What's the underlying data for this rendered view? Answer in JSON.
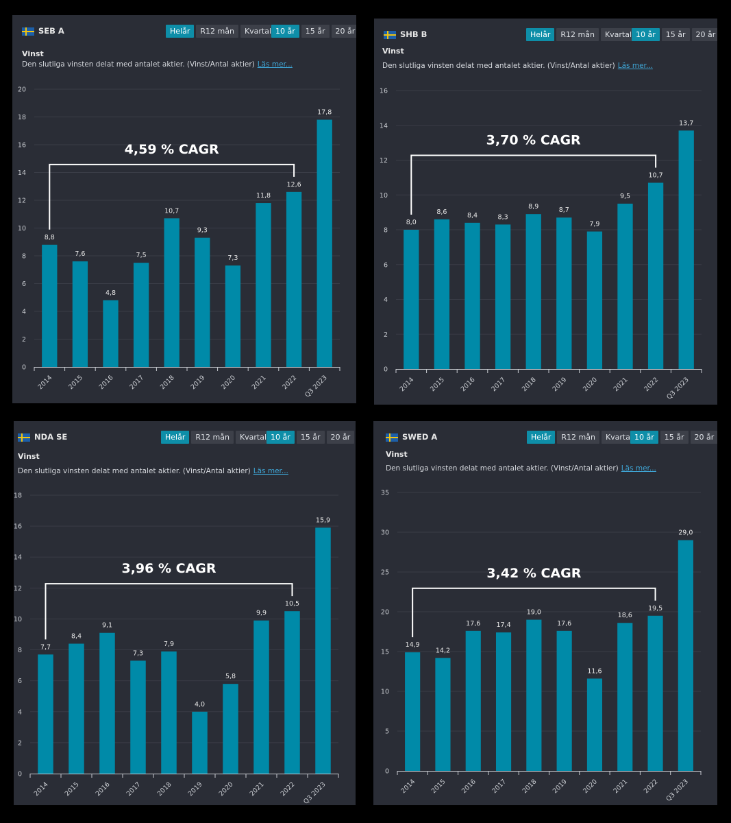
{
  "common": {
    "metric_title": "Vinst",
    "description": "Den slutliga vinsten delat med antalet aktier. (Vinst/Antal aktier)",
    "read_more": "Läs mer...",
    "period_buttons": [
      "Helår",
      "R12 mån",
      "Kvartal"
    ],
    "range_buttons": [
      "10 år",
      "15 år",
      "20 år"
    ],
    "active_period": "Helår",
    "active_range": "10 år"
  },
  "colors": {
    "bar": "#008aa8",
    "panel_bg": "#2a2d36",
    "accent": "#0e8ea8",
    "grid": "#3a3d47",
    "page_bg": "#000000"
  },
  "chart_data": [
    {
      "type": "bar",
      "ticker": "SEB A",
      "categories": [
        "2014",
        "2015",
        "2016",
        "2017",
        "2018",
        "2019",
        "2020",
        "2021",
        "2022",
        "Q3 2023"
      ],
      "values": [
        8.8,
        7.6,
        4.8,
        7.5,
        10.7,
        9.3,
        7.3,
        11.8,
        12.6,
        17.8
      ],
      "value_labels": [
        "8,8",
        "7,6",
        "4,8",
        "7,5",
        "10,7",
        "9,3",
        "7,3",
        "11,8",
        "12,6",
        "17,8"
      ],
      "ylim": [
        0,
        20
      ],
      "yticks": [
        0,
        2,
        4,
        6,
        8,
        10,
        12,
        14,
        16,
        18,
        20
      ],
      "annotation": "4,59 % CAGR",
      "annotation_from": 0,
      "annotation_to": 8
    },
    {
      "type": "bar",
      "ticker": "SHB B",
      "categories": [
        "2014",
        "2015",
        "2016",
        "2017",
        "2018",
        "2019",
        "2020",
        "2021",
        "2022",
        "Q3 2023"
      ],
      "values": [
        8.0,
        8.6,
        8.4,
        8.3,
        8.9,
        8.7,
        7.9,
        9.5,
        10.7,
        13.7
      ],
      "value_labels": [
        "8,0",
        "8,6",
        "8,4",
        "8,3",
        "8,9",
        "8,7",
        "7,9",
        "9,5",
        "10,7",
        "13,7"
      ],
      "ylim": [
        0,
        16
      ],
      "yticks": [
        0,
        2,
        4,
        6,
        8,
        10,
        12,
        14,
        16
      ],
      "annotation": "3,70 % CAGR",
      "annotation_from": 0,
      "annotation_to": 8
    },
    {
      "type": "bar",
      "ticker": "NDA SE",
      "categories": [
        "2014",
        "2015",
        "2016",
        "2017",
        "2018",
        "2019",
        "2020",
        "2021",
        "2022",
        "Q3 2023"
      ],
      "values": [
        7.7,
        8.4,
        9.1,
        7.3,
        7.9,
        4.0,
        5.8,
        9.9,
        10.5,
        15.9
      ],
      "value_labels": [
        "7,7",
        "8,4",
        "9,1",
        "7,3",
        "7,9",
        "4,0",
        "5,8",
        "9,9",
        "10,5",
        "15,9"
      ],
      "ylim": [
        0,
        18
      ],
      "yticks": [
        0,
        2,
        4,
        6,
        8,
        10,
        12,
        14,
        16,
        18
      ],
      "annotation": "3,96 % CAGR",
      "annotation_from": 0,
      "annotation_to": 8
    },
    {
      "type": "bar",
      "ticker": "SWED A",
      "categories": [
        "2014",
        "2015",
        "2016",
        "2017",
        "2018",
        "2019",
        "2020",
        "2021",
        "2022",
        "Q3 2023"
      ],
      "values": [
        14.9,
        14.2,
        17.6,
        17.4,
        19.0,
        17.6,
        11.6,
        18.6,
        19.5,
        29.0
      ],
      "value_labels": [
        "14,9",
        "14,2",
        "17,6",
        "17,4",
        "19,0",
        "17,6",
        "11,6",
        "18,6",
        "19,5",
        "29,0"
      ],
      "ylim": [
        0,
        35
      ],
      "yticks": [
        0,
        5,
        10,
        15,
        20,
        25,
        30,
        35
      ],
      "annotation": "3,42 % CAGR",
      "annotation_from": 0,
      "annotation_to": 8
    }
  ]
}
